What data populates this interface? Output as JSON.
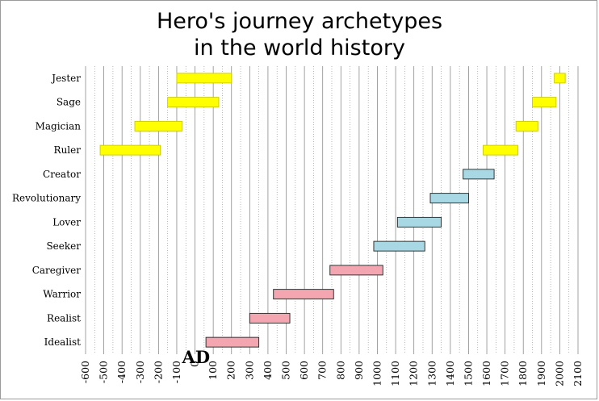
{
  "chart_data": {
    "type": "bar",
    "orientation": "horizontal-range",
    "title": [
      "Hero's journey archetypes",
      "in the world history"
    ],
    "xlim": [
      -600,
      2100
    ],
    "x_ticks": [
      -600,
      -500,
      -400,
      -300,
      -200,
      -100,
      0,
      100,
      200,
      300,
      400,
      500,
      600,
      700,
      800,
      900,
      1000,
      1100,
      1200,
      1300,
      1400,
      1500,
      1600,
      1700,
      1800,
      1900,
      2000,
      2100
    ],
    "annotation": "AD",
    "annotation_x": 0,
    "grid": true,
    "categories": [
      "Jester",
      "Sage",
      "Magician",
      "Ruler",
      "Creator",
      "Revolutionary",
      "Lover",
      "Seeker",
      "Caregiver",
      "Warrior",
      "Realist",
      "Idealist"
    ],
    "ranges": [
      {
        "category": "Jester",
        "start": -100,
        "end": 200,
        "color": "#ffff00"
      },
      {
        "category": "Jester",
        "start": 1970,
        "end": 2030,
        "color": "#ffff00"
      },
      {
        "category": "Sage",
        "start": -150,
        "end": 130,
        "color": "#ffff00"
      },
      {
        "category": "Sage",
        "start": 1850,
        "end": 1980,
        "color": "#ffff00"
      },
      {
        "category": "Magician",
        "start": -330,
        "end": -70,
        "color": "#ffff00"
      },
      {
        "category": "Magician",
        "start": 1760,
        "end": 1880,
        "color": "#ffff00"
      },
      {
        "category": "Ruler",
        "start": -520,
        "end": -190,
        "color": "#ffff00"
      },
      {
        "category": "Ruler",
        "start": 1580,
        "end": 1770,
        "color": "#ffff00"
      },
      {
        "category": "Creator",
        "start": 1470,
        "end": 1640,
        "color": "#a8d8e3"
      },
      {
        "category": "Revolutionary",
        "start": 1290,
        "end": 1500,
        "color": "#a8d8e3"
      },
      {
        "category": "Lover",
        "start": 1110,
        "end": 1350,
        "color": "#a8d8e3"
      },
      {
        "category": "Seeker",
        "start": 980,
        "end": 1260,
        "color": "#a8d8e3"
      },
      {
        "category": "Caregiver",
        "start": 740,
        "end": 1030,
        "color": "#f3a5b0"
      },
      {
        "category": "Warrior",
        "start": 430,
        "end": 760,
        "color": "#f3a5b0"
      },
      {
        "category": "Realist",
        "start": 300,
        "end": 520,
        "color": "#f3a5b0"
      },
      {
        "category": "Idealist",
        "start": 60,
        "end": 350,
        "color": "#f3a5b0"
      }
    ]
  }
}
